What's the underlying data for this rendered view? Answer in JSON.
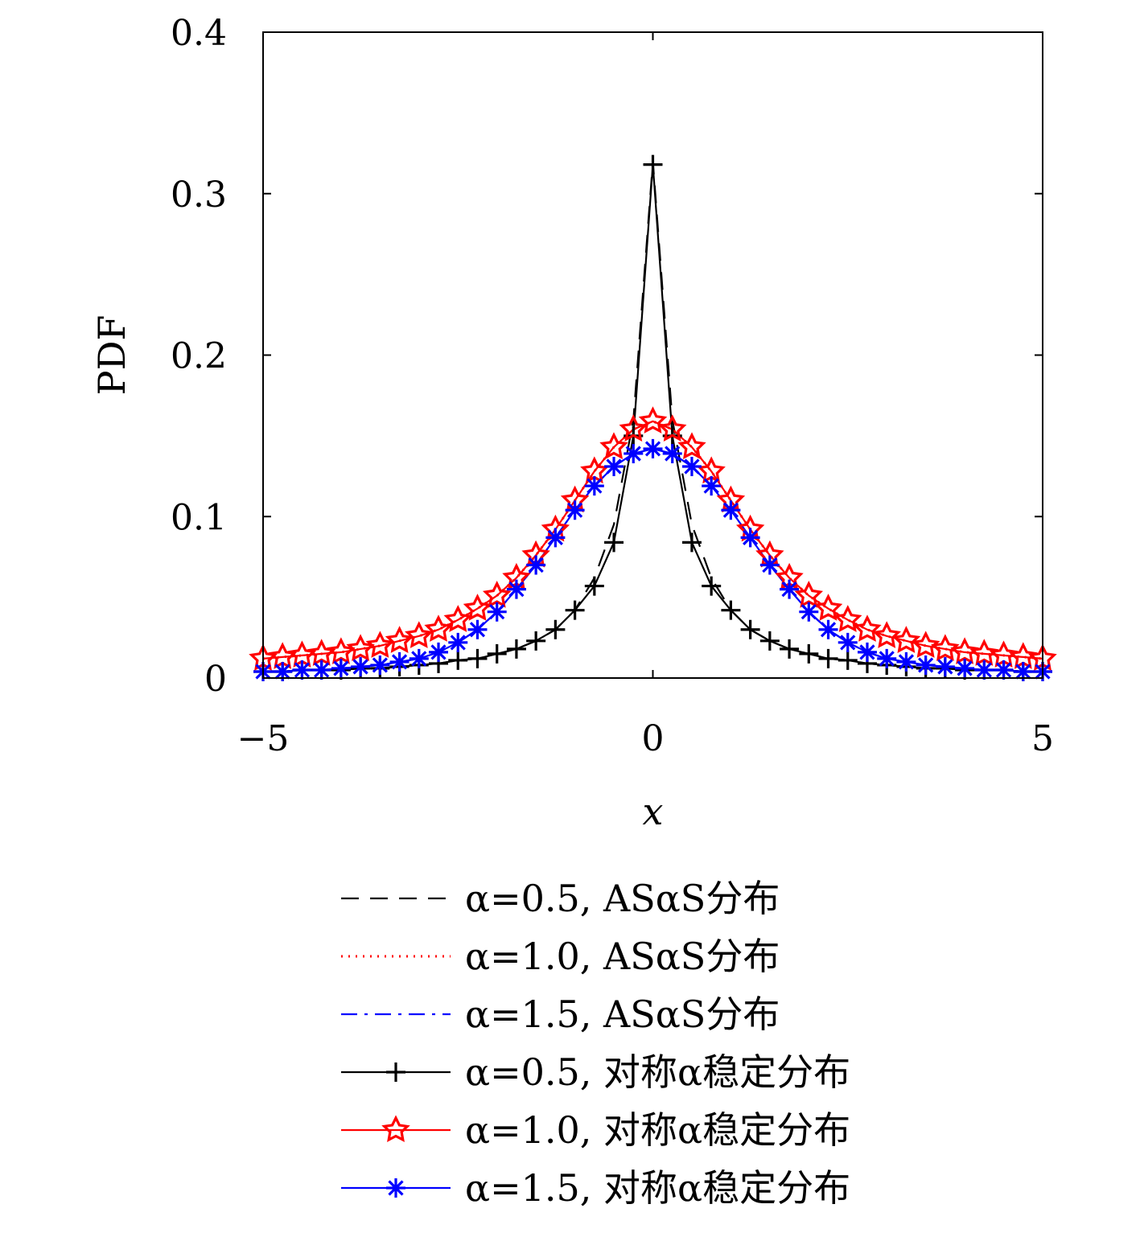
{
  "chart_data": {
    "type": "line",
    "title": "",
    "xlabel": "x",
    "ylabel": "PDF",
    "xlim": [
      -5,
      5
    ],
    "ylim": [
      0,
      0.4
    ],
    "xticks": [
      -5,
      0,
      5
    ],
    "xtick_labels": [
      "−5",
      "0",
      "5"
    ],
    "yticks": [
      0,
      0.1,
      0.2,
      0.3,
      0.4
    ],
    "ytick_labels": [
      "0",
      "0.1",
      "0.2",
      "0.3",
      "0.4"
    ],
    "grid": false,
    "legend_position": "below",
    "x": [
      -5.0,
      -4.75,
      -4.5,
      -4.25,
      -4.0,
      -3.75,
      -3.5,
      -3.25,
      -3.0,
      -2.75,
      -2.5,
      -2.25,
      -2.0,
      -1.75,
      -1.5,
      -1.25,
      -1.0,
      -0.75,
      -0.5,
      -0.25,
      0.0,
      0.25,
      0.5,
      0.75,
      1.0,
      1.25,
      1.5,
      1.75,
      2.0,
      2.25,
      2.5,
      2.75,
      3.0,
      3.25,
      3.5,
      3.75,
      4.0,
      4.25,
      4.5,
      4.75,
      5.0
    ],
    "series": [
      {
        "name": "α=0.5, ASαS分布",
        "color": "#000000",
        "style": "dashed",
        "marker": "none",
        "values": [
          0.004,
          0.004,
          0.005,
          0.005,
          0.005,
          0.006,
          0.006,
          0.007,
          0.008,
          0.009,
          0.011,
          0.012,
          0.015,
          0.018,
          0.023,
          0.03,
          0.042,
          0.062,
          0.095,
          0.16,
          0.32,
          0.16,
          0.095,
          0.062,
          0.042,
          0.03,
          0.023,
          0.018,
          0.015,
          0.012,
          0.011,
          0.009,
          0.008,
          0.007,
          0.006,
          0.006,
          0.005,
          0.005,
          0.005,
          0.004,
          0.004
        ]
      },
      {
        "name": "α=1.0, ASαS分布",
        "color": "#ff0000",
        "style": "dotted",
        "marker": "none",
        "values": [
          0.012,
          0.013,
          0.014,
          0.015,
          0.016,
          0.018,
          0.02,
          0.023,
          0.026,
          0.03,
          0.036,
          0.043,
          0.051,
          0.062,
          0.076,
          0.092,
          0.11,
          0.128,
          0.143,
          0.154,
          0.159,
          0.154,
          0.143,
          0.128,
          0.11,
          0.092,
          0.076,
          0.062,
          0.051,
          0.043,
          0.036,
          0.03,
          0.026,
          0.023,
          0.02,
          0.018,
          0.016,
          0.015,
          0.014,
          0.013,
          0.012
        ]
      },
      {
        "name": "α=1.5, ASαS分布",
        "color": "#0000ff",
        "style": "dashdot",
        "marker": "none",
        "values": [
          0.004,
          0.004,
          0.005,
          0.005,
          0.006,
          0.007,
          0.008,
          0.01,
          0.012,
          0.016,
          0.022,
          0.03,
          0.041,
          0.055,
          0.07,
          0.087,
          0.104,
          0.119,
          0.131,
          0.139,
          0.142,
          0.139,
          0.131,
          0.119,
          0.104,
          0.087,
          0.07,
          0.055,
          0.041,
          0.03,
          0.022,
          0.016,
          0.012,
          0.01,
          0.008,
          0.007,
          0.006,
          0.005,
          0.005,
          0.004,
          0.004
        ]
      },
      {
        "name": "α=0.5, 对称α稳定分布",
        "color": "#000000",
        "style": "solid",
        "marker": "plus",
        "values": [
          0.004,
          0.004,
          0.005,
          0.005,
          0.005,
          0.006,
          0.006,
          0.007,
          0.008,
          0.009,
          0.011,
          0.012,
          0.015,
          0.018,
          0.023,
          0.03,
          0.042,
          0.057,
          0.084,
          0.15,
          0.318,
          0.15,
          0.084,
          0.057,
          0.042,
          0.03,
          0.023,
          0.018,
          0.015,
          0.012,
          0.011,
          0.009,
          0.008,
          0.007,
          0.006,
          0.006,
          0.005,
          0.005,
          0.005,
          0.004,
          0.004
        ]
      },
      {
        "name": "α=1.0, 对称α稳定分布",
        "color": "#ff0000",
        "style": "solid",
        "marker": "star",
        "values": [
          0.012,
          0.013,
          0.014,
          0.015,
          0.016,
          0.018,
          0.02,
          0.023,
          0.026,
          0.03,
          0.036,
          0.043,
          0.051,
          0.062,
          0.076,
          0.092,
          0.11,
          0.128,
          0.143,
          0.154,
          0.159,
          0.154,
          0.143,
          0.128,
          0.11,
          0.092,
          0.076,
          0.062,
          0.051,
          0.043,
          0.036,
          0.03,
          0.026,
          0.023,
          0.02,
          0.018,
          0.016,
          0.015,
          0.014,
          0.013,
          0.012
        ]
      },
      {
        "name": "α=1.5, 对称α稳定分布",
        "color": "#0000ff",
        "style": "solid",
        "marker": "asterisk",
        "values": [
          0.004,
          0.004,
          0.005,
          0.005,
          0.006,
          0.007,
          0.008,
          0.01,
          0.012,
          0.016,
          0.022,
          0.03,
          0.041,
          0.055,
          0.07,
          0.087,
          0.104,
          0.119,
          0.131,
          0.139,
          0.142,
          0.139,
          0.131,
          0.119,
          0.104,
          0.087,
          0.07,
          0.055,
          0.041,
          0.03,
          0.022,
          0.016,
          0.012,
          0.01,
          0.008,
          0.007,
          0.006,
          0.005,
          0.005,
          0.004,
          0.004
        ]
      }
    ]
  }
}
